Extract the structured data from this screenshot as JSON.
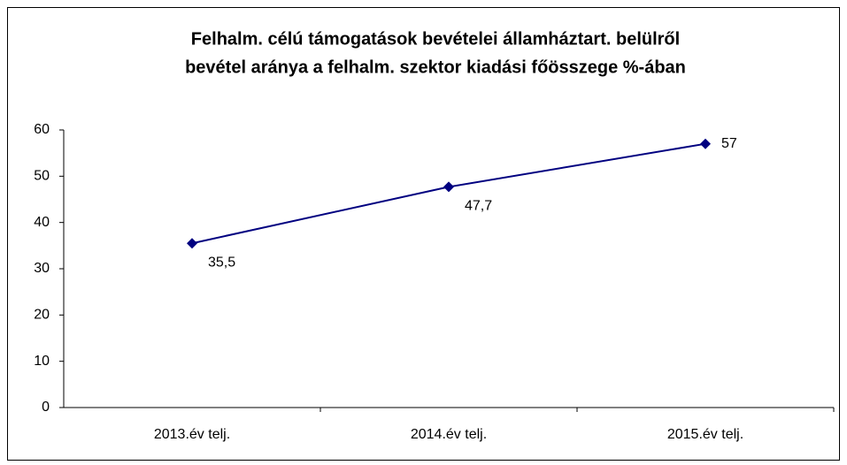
{
  "chart_data": {
    "type": "line",
    "title": [
      "Felhalm. célú támogatások bevételei államháztart. belülről",
      "bevétel aránya a felhalm. szektor kiadási főösszege %-ában"
    ],
    "categories": [
      "2013.év telj.",
      "2014.év telj.",
      "2015.év telj."
    ],
    "series": [
      {
        "name": "arány",
        "color": "#000080",
        "values": [
          35.5,
          47.7,
          57
        ],
        "value_labels": [
          "35,5",
          "47,7",
          "57"
        ]
      }
    ],
    "ylim": [
      0,
      60
    ],
    "yticks": [
      0,
      10,
      20,
      30,
      40,
      50,
      60
    ],
    "grid": false
  }
}
